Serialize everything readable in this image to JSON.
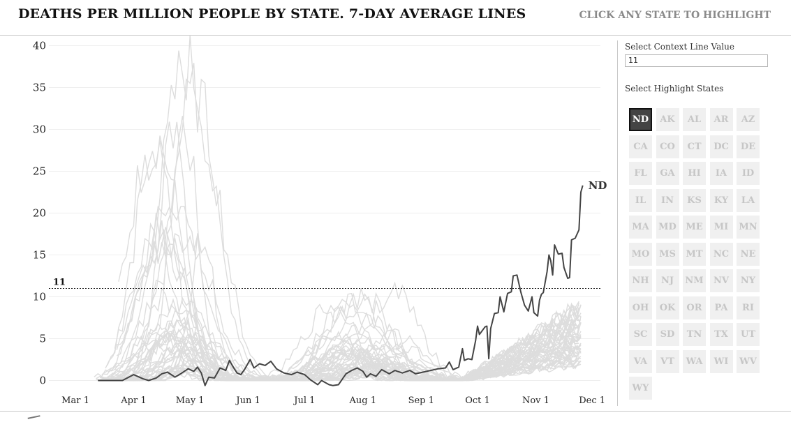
{
  "header": {
    "title": "DEATHS PER MILLION PEOPLE BY STATE. 7-DAY AVERAGE LINES",
    "hint": "CLICK ANY STATE TO HIGHLIGHT"
  },
  "panel": {
    "context_label": "Select Context Line Value",
    "context_value": "11",
    "states_label": "Select Highlight States",
    "states": [
      "ND",
      "AK",
      "AL",
      "AR",
      "AZ",
      "CA",
      "CO",
      "CT",
      "DC",
      "DE",
      "FL",
      "GA",
      "HI",
      "IA",
      "ID",
      "IL",
      "IN",
      "KS",
      "KY",
      "LA",
      "MA",
      "MD",
      "ME",
      "MI",
      "MN",
      "MO",
      "MS",
      "MT",
      "NC",
      "NE",
      "NH",
      "NJ",
      "NM",
      "NV",
      "NY",
      "OH",
      "OK",
      "OR",
      "PA",
      "RI",
      "SC",
      "SD",
      "TN",
      "TX",
      "UT",
      "VA",
      "VT",
      "WA",
      "WI",
      "WV",
      "WY"
    ],
    "selected": "ND"
  },
  "colors": {
    "highlight": "#444444",
    "context": "#dddddd",
    "grid": "#eeeeee"
  },
  "chart_data": {
    "type": "line",
    "x_labels": [
      "Mar 1",
      "Apr 1",
      "May 1",
      "Jun 1",
      "Jul 1",
      "Aug 1",
      "Sep 1",
      "Oct 1",
      "Nov 1",
      "Dec 1"
    ],
    "y_ticks": [
      0,
      5,
      10,
      15,
      20,
      25,
      30,
      35,
      40
    ],
    "ylim": [
      -1,
      40
    ],
    "grid": true,
    "context_line": {
      "value": 11,
      "label": "11",
      "style": "dashed"
    },
    "highlight": {
      "name": "ND",
      "points": [
        [
          "03-13",
          0
        ],
        [
          "03-26",
          0
        ],
        [
          "04-01",
          0.7
        ],
        [
          "04-06",
          0.2
        ],
        [
          "04-09",
          0
        ],
        [
          "04-13",
          0.3
        ],
        [
          "04-16",
          0.8
        ],
        [
          "04-19",
          1
        ],
        [
          "04-23",
          0.4
        ],
        [
          "04-26",
          0.8
        ],
        [
          "04-30",
          1.4
        ],
        [
          "05-03",
          1.1
        ],
        [
          "05-05",
          1.6
        ],
        [
          "05-07",
          0.9
        ],
        [
          "05-09",
          -0.6
        ],
        [
          "05-11",
          0.4
        ],
        [
          "05-14",
          0.3
        ],
        [
          "05-17",
          1.5
        ],
        [
          "05-20",
          1.2
        ],
        [
          "05-22",
          2.4
        ],
        [
          "05-24",
          1.6
        ],
        [
          "05-26",
          0.9
        ],
        [
          "05-28",
          0.7
        ],
        [
          "05-30",
          1.3
        ],
        [
          "06-02",
          2.5
        ],
        [
          "06-04",
          1.5
        ],
        [
          "06-07",
          2
        ],
        [
          "06-10",
          1.8
        ],
        [
          "06-13",
          2.3
        ],
        [
          "06-16",
          1.4
        ],
        [
          "06-20",
          0.9
        ],
        [
          "06-24",
          0.7
        ],
        [
          "06-27",
          1
        ],
        [
          "07-01",
          0.7
        ],
        [
          "07-04",
          0.1
        ],
        [
          "07-06",
          -0.2
        ],
        [
          "07-08",
          -0.5
        ],
        [
          "07-10",
          0
        ],
        [
          "07-14",
          -0.5
        ],
        [
          "07-16",
          -0.6
        ],
        [
          "07-19",
          -0.5
        ],
        [
          "07-23",
          0.8
        ],
        [
          "07-26",
          1.2
        ],
        [
          "07-29",
          1.5
        ],
        [
          "08-01",
          1.1
        ],
        [
          "08-03",
          0.4
        ],
        [
          "08-05",
          0.8
        ],
        [
          "08-08",
          0.5
        ],
        [
          "08-11",
          1.3
        ],
        [
          "08-15",
          0.8
        ],
        [
          "08-18",
          1.2
        ],
        [
          "08-22",
          0.9
        ],
        [
          "08-26",
          1.2
        ],
        [
          "08-29",
          0.8
        ],
        [
          "09-02",
          1
        ],
        [
          "09-06",
          1.2
        ],
        [
          "09-10",
          1.4
        ],
        [
          "09-14",
          1.5
        ],
        [
          "09-16",
          2.2
        ],
        [
          "09-18",
          1.3
        ],
        [
          "09-21",
          1.6
        ],
        [
          "09-23",
          3.8
        ],
        [
          "09-24",
          2.4
        ],
        [
          "09-26",
          2.6
        ],
        [
          "09-28",
          2.5
        ],
        [
          "09-30",
          4.8
        ],
        [
          "10-01",
          6.5
        ],
        [
          "10-02",
          5.5
        ],
        [
          "10-05",
          6.4
        ],
        [
          "10-06",
          6.5
        ],
        [
          "10-07",
          2.6
        ],
        [
          "10-08",
          6.2
        ],
        [
          "10-10",
          8
        ],
        [
          "10-12",
          8.1
        ],
        [
          "10-13",
          10
        ],
        [
          "10-15",
          8.2
        ],
        [
          "10-17",
          10.4
        ],
        [
          "10-19",
          10.6
        ],
        [
          "10-20",
          12.5
        ],
        [
          "10-22",
          12.6
        ],
        [
          "10-24",
          10.6
        ],
        [
          "10-26",
          9
        ],
        [
          "10-28",
          8.3
        ],
        [
          "10-30",
          10
        ],
        [
          "10-31",
          8.1
        ],
        [
          "11-02",
          7.7
        ],
        [
          "11-03",
          9.6
        ],
        [
          "11-04",
          10.3
        ],
        [
          "11-05",
          10.5
        ],
        [
          "11-07",
          13
        ],
        [
          "11-08",
          15
        ],
        [
          "11-09",
          14.3
        ],
        [
          "11-10",
          12.6
        ],
        [
          "11-11",
          16.2
        ],
        [
          "11-13",
          15.1
        ],
        [
          "11-15",
          15.2
        ],
        [
          "11-16",
          13.5
        ],
        [
          "11-18",
          12.2
        ],
        [
          "11-19",
          12.3
        ],
        [
          "11-20",
          16.8
        ],
        [
          "11-22",
          17
        ],
        [
          "11-24",
          18
        ],
        [
          "11-25",
          22.5
        ],
        [
          "11-26",
          23.3
        ]
      ]
    },
    "context_series_count": 50
  }
}
